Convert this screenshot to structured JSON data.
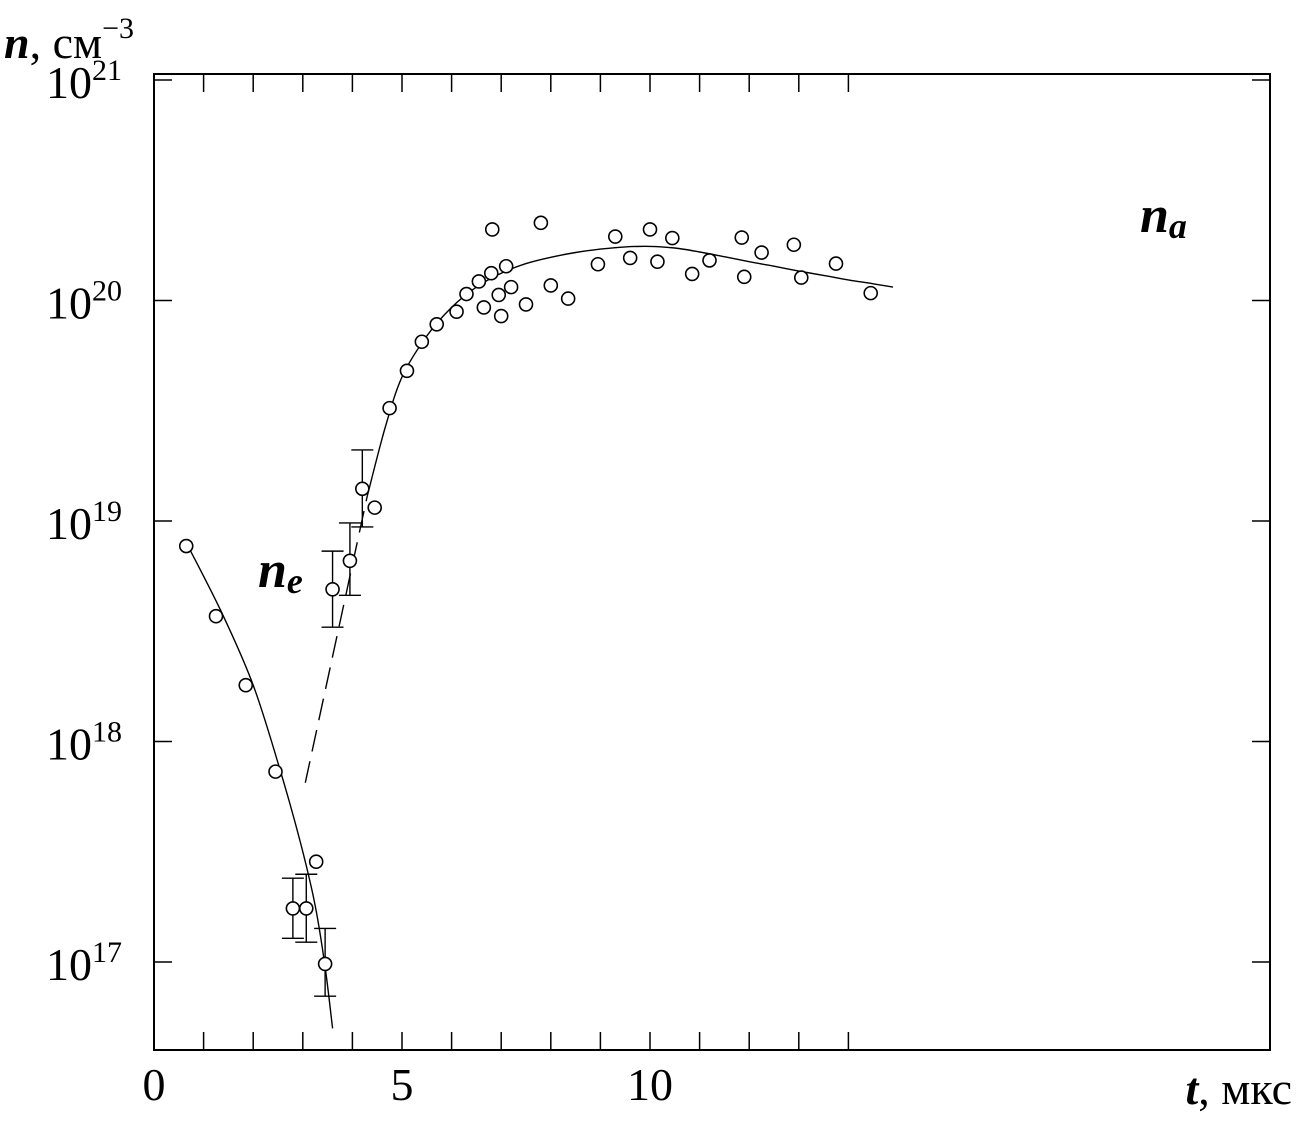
{
  "chart_data": {
    "type": "scatter",
    "y_scale": "log",
    "xlim": [
      0,
      15
    ],
    "ylim_log10": [
      16.6,
      21
    ],
    "x_ticks": [
      {
        "value": 0,
        "label": "0"
      },
      {
        "value": 5,
        "label": "5"
      },
      {
        "value": 10,
        "label": "10"
      }
    ],
    "y_ticks": [
      {
        "value": 17,
        "base": "10",
        "exp": "17"
      },
      {
        "value": 18,
        "base": "10",
        "exp": "18"
      },
      {
        "value": 19,
        "base": "10",
        "exp": "19"
      },
      {
        "value": 20,
        "base": "10",
        "exp": "20"
      },
      {
        "value": 21,
        "base": "10",
        "exp": "21"
      }
    ],
    "xlabel": {
      "var": "t",
      "unit": ", мкс"
    },
    "ylabel": {
      "var": "n",
      "unit": ", см",
      "exp": "−3"
    },
    "series": [
      {
        "name": "n_e",
        "label": {
          "main": "n",
          "sub": "e"
        },
        "points": [
          {
            "x": 0.65,
            "y": 7.7e+18
          },
          {
            "x": 1.25,
            "y": 3.7e+18
          },
          {
            "x": 1.85,
            "y": 1.8e+18
          },
          {
            "x": 2.45,
            "y": 7.3e+17
          },
          {
            "x": 2.8,
            "y": 1.75e+17,
            "err": [
              1.28e+17,
              2.4e+17
            ]
          },
          {
            "x": 3.07,
            "y": 1.75e+17,
            "err": [
              1.23e+17,
              2.5e+17
            ]
          },
          {
            "x": 3.27,
            "y": 2.85e+17
          },
          {
            "x": 3.45,
            "y": 9.8e+16,
            "err": [
              7e+16,
              1.42e+17
            ]
          }
        ],
        "fit": [
          [
            0.7,
            7.6e+18
          ],
          [
            1.4,
            3.7e+18
          ],
          [
            2.0,
            1.8e+18
          ],
          [
            2.5,
            8e+17
          ],
          [
            2.95,
            3.5e+17
          ],
          [
            3.25,
            1.8e+17
          ],
          [
            3.45,
            9.5e+16
          ],
          [
            3.6,
            5e+16
          ]
        ]
      },
      {
        "name": "n_a",
        "label": {
          "main": "n",
          "sub": "a"
        },
        "points": [
          {
            "x": 3.6,
            "y": 4.9e+18,
            "err": [
              3.3e+18,
              7.3e+18
            ]
          },
          {
            "x": 3.95,
            "y": 6.6e+18,
            "err": [
              4.6e+18,
              9.8e+18
            ]
          },
          {
            "x": 4.2,
            "y": 1.4e+19,
            "err": [
              9.4e+18,
              2.1e+19
            ]
          },
          {
            "x": 4.45,
            "y": 1.15e+19
          },
          {
            "x": 4.75,
            "y": 3.25e+19
          },
          {
            "x": 5.1,
            "y": 4.8e+19
          },
          {
            "x": 5.4,
            "y": 6.5e+19
          },
          {
            "x": 5.7,
            "y": 7.8e+19
          },
          {
            "x": 6.1,
            "y": 8.9e+19
          },
          {
            "x": 6.3,
            "y": 1.07e+20
          },
          {
            "x": 6.55,
            "y": 1.22e+20
          },
          {
            "x": 6.65,
            "y": 9.3e+19
          },
          {
            "x": 6.8,
            "y": 1.33e+20
          },
          {
            "x": 6.82,
            "y": 2.1e+20
          },
          {
            "x": 6.95,
            "y": 1.06e+20
          },
          {
            "x": 7.0,
            "y": 8.5e+19
          },
          {
            "x": 7.1,
            "y": 1.43e+20
          },
          {
            "x": 7.2,
            "y": 1.15e+20
          },
          {
            "x": 7.5,
            "y": 9.6e+19
          },
          {
            "x": 7.8,
            "y": 2.25e+20
          },
          {
            "x": 8.0,
            "y": 1.17e+20
          },
          {
            "x": 8.35,
            "y": 1.02e+20
          },
          {
            "x": 8.95,
            "y": 1.46e+20
          },
          {
            "x": 9.3,
            "y": 1.95e+20
          },
          {
            "x": 9.6,
            "y": 1.56e+20
          },
          {
            "x": 10.0,
            "y": 2.1e+20
          },
          {
            "x": 10.15,
            "y": 1.5e+20
          },
          {
            "x": 10.45,
            "y": 1.92e+20
          },
          {
            "x": 10.85,
            "y": 1.32e+20
          },
          {
            "x": 11.2,
            "y": 1.52e+20
          },
          {
            "x": 11.85,
            "y": 1.93e+20
          },
          {
            "x": 11.9,
            "y": 1.28e+20
          },
          {
            "x": 12.25,
            "y": 1.65e+20
          },
          {
            "x": 12.9,
            "y": 1.79e+20
          },
          {
            "x": 13.05,
            "y": 1.27e+20
          },
          {
            "x": 13.75,
            "y": 1.47e+20
          },
          {
            "x": 14.45,
            "y": 1.08e+20
          }
        ],
        "fit_dashed": [
          [
            3.05,
            6.5e+17
          ],
          [
            4.3,
            1.3e+19
          ]
        ],
        "fit": [
          [
            4.3,
            1.3e+19
          ],
          [
            4.65,
            2.6e+19
          ],
          [
            5.0,
            4.5e+19
          ],
          [
            5.5,
            6.9e+19
          ],
          [
            6.0,
            9.3e+19
          ],
          [
            6.5,
            1.15e+20
          ],
          [
            7.0,
            1.33e+20
          ],
          [
            7.5,
            1.47e+20
          ],
          [
            8.0,
            1.57e+20
          ],
          [
            8.5,
            1.65e+20
          ],
          [
            9.0,
            1.71e+20
          ],
          [
            9.5,
            1.75e+20
          ],
          [
            10.0,
            1.76e+20
          ],
          [
            10.5,
            1.73e+20
          ],
          [
            11.0,
            1.66e+20
          ],
          [
            11.5,
            1.58e+20
          ],
          [
            12.0,
            1.5e+20
          ],
          [
            12.5,
            1.43e+20
          ],
          [
            13.0,
            1.36e+20
          ],
          [
            13.5,
            1.3e+20
          ],
          [
            14.0,
            1.24e+20
          ],
          [
            14.5,
            1.19e+20
          ],
          [
            14.9,
            1.15e+20
          ]
        ]
      }
    ]
  }
}
